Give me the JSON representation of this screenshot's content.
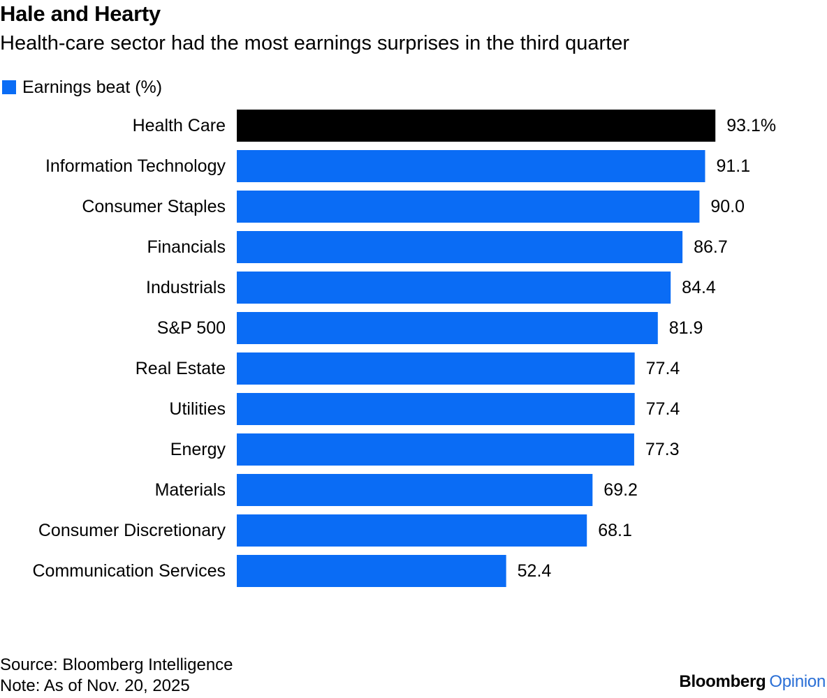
{
  "header": {
    "title": "Hale and Hearty",
    "subtitle": "Health-care sector had the most earnings surprises in the third quarter"
  },
  "legend": {
    "label": "Earnings beat (%)",
    "color": "#0a6cf5"
  },
  "colors": {
    "bar": "#0a6cf5",
    "highlight": "#000000",
    "brand_accent": "#2a6fd6"
  },
  "chart_data": {
    "type": "bar",
    "orientation": "horizontal",
    "categories": [
      "Health Care",
      "Information Technology",
      "Consumer Staples",
      "Financials",
      "Industrials",
      "S&P 500",
      "Real Estate",
      "Utilities",
      "Energy",
      "Materials",
      "Consumer Discretionary",
      "Communication Services"
    ],
    "series": [
      {
        "name": "Earnings beat (%)",
        "values": [
          93.1,
          91.1,
          90.0,
          86.7,
          84.4,
          81.9,
          77.4,
          77.4,
          77.3,
          69.2,
          68.1,
          52.4
        ]
      }
    ],
    "value_labels": [
      "93.1%",
      "91.1",
      "90.0",
      "86.7",
      "84.4",
      "81.9",
      "77.4",
      "77.4",
      "77.3",
      "69.2",
      "68.1",
      "52.4"
    ],
    "highlight_category": "Health Care",
    "xlim": [
      0,
      100
    ],
    "grid": false,
    "legend_position": "top-left"
  },
  "footer": {
    "source": "Source: Bloomberg Intelligence",
    "note": "Note: As of Nov. 20, 2025"
  },
  "brand": {
    "name": "Bloomberg",
    "section": "Opinion"
  }
}
